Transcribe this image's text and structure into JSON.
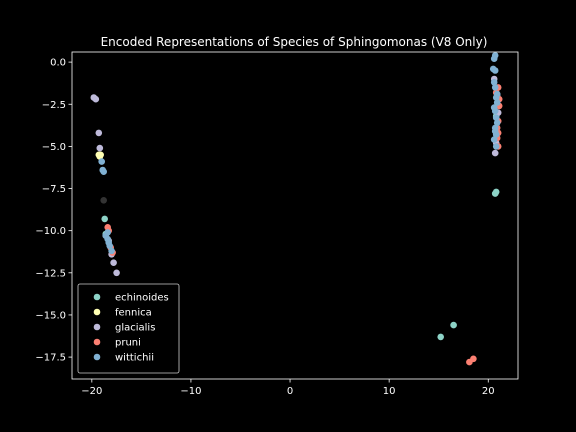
{
  "chart_data": {
    "type": "scatter",
    "title": "Encoded Representations of Species of Sphingomonas (V8 Only)",
    "xlabel": "",
    "ylabel": "",
    "xlim": [
      -22,
      23
    ],
    "ylim": [
      -18.8,
      0.6
    ],
    "xticks": [
      -20,
      -10,
      0,
      10,
      20
    ],
    "yticks": [
      0.0,
      -2.5,
      -5.0,
      -7.5,
      -10.0,
      -12.5,
      -15.0,
      -17.5
    ],
    "grid": false,
    "legend": "lower-left",
    "series": [
      {
        "name": "echinoides",
        "color": "#8dd3c7",
        "points": [
          [
            -18.7,
            -9.3
          ],
          [
            16.5,
            -15.6
          ],
          [
            15.2,
            -16.3
          ],
          [
            20.8,
            -7.7
          ],
          [
            20.7,
            -7.8
          ],
          [
            -18.6,
            -10.2
          ],
          [
            20.8,
            -3.2
          ]
        ]
      },
      {
        "name": "fennica",
        "color": "#ffffb3",
        "points": [
          [
            -19.1,
            -5.5
          ],
          [
            -19.3,
            -5.5
          ],
          [
            -19.2,
            -5.6
          ]
        ]
      },
      {
        "name": "glacialis",
        "color": "#bebada",
        "points": [
          [
            -19.8,
            -2.1
          ],
          [
            -19.6,
            -2.2
          ],
          [
            -19.3,
            -4.2
          ],
          [
            -19.2,
            -5.1
          ],
          [
            -18.0,
            -11.4
          ],
          [
            -17.8,
            -11.9
          ],
          [
            -17.5,
            -12.5
          ],
          [
            20.7,
            -5.4
          ],
          [
            20.8,
            -4.8
          ],
          [
            20.6,
            -1.0
          ],
          [
            20.9,
            -2.0
          ],
          [
            21.0,
            -3.0
          ],
          [
            20.8,
            -4.0
          ],
          [
            -18.3,
            -10.6
          ]
        ]
      },
      {
        "name": "pruni",
        "color": "#fb8072",
        "points": [
          [
            -18.4,
            -9.8
          ],
          [
            -18.3,
            -10.0
          ],
          [
            -18.1,
            -11.0
          ],
          [
            -17.9,
            -11.3
          ],
          [
            18.5,
            -17.6
          ],
          [
            18.1,
            -17.8
          ],
          [
            21.0,
            -1.5
          ],
          [
            21.1,
            -2.6
          ],
          [
            21.0,
            -3.5
          ],
          [
            20.9,
            -4.5
          ],
          [
            21.0,
            -5.0
          ],
          [
            20.8,
            -1.8
          ],
          [
            21.1,
            -2.2
          ],
          [
            20.9,
            -3.9
          ],
          [
            21.0,
            -4.2
          ]
        ]
      },
      {
        "name": "wittichii",
        "color": "#80b1d3",
        "points": [
          [
            -19.0,
            -5.9
          ],
          [
            -18.9,
            -6.4
          ],
          [
            -18.8,
            -6.5
          ],
          [
            -18.6,
            -10.3
          ],
          [
            -18.4,
            -10.5
          ],
          [
            -18.2,
            -10.9
          ],
          [
            -18.0,
            -11.2
          ],
          [
            20.7,
            0.4
          ],
          [
            20.6,
            0.2
          ],
          [
            20.5,
            -0.4
          ],
          [
            20.7,
            -0.5
          ],
          [
            20.6,
            -1.2
          ],
          [
            20.7,
            -1.5
          ],
          [
            20.8,
            -2.1
          ],
          [
            20.9,
            -2.4
          ],
          [
            20.7,
            -2.9
          ],
          [
            20.8,
            -3.3
          ],
          [
            20.9,
            -3.6
          ],
          [
            20.7,
            -3.9
          ],
          [
            20.8,
            -4.3
          ],
          [
            20.6,
            -4.6
          ],
          [
            20.8,
            -5.0
          ],
          [
            20.9,
            -1.9
          ],
          [
            20.6,
            -2.7
          ],
          [
            20.7,
            -4.1
          ],
          [
            -18.4,
            -10.1
          ],
          [
            -18.3,
            -10.7
          ]
        ]
      },
      {
        "name": "",
        "color": "#333333",
        "points": [
          [
            -18.8,
            -8.2
          ]
        ]
      }
    ]
  }
}
